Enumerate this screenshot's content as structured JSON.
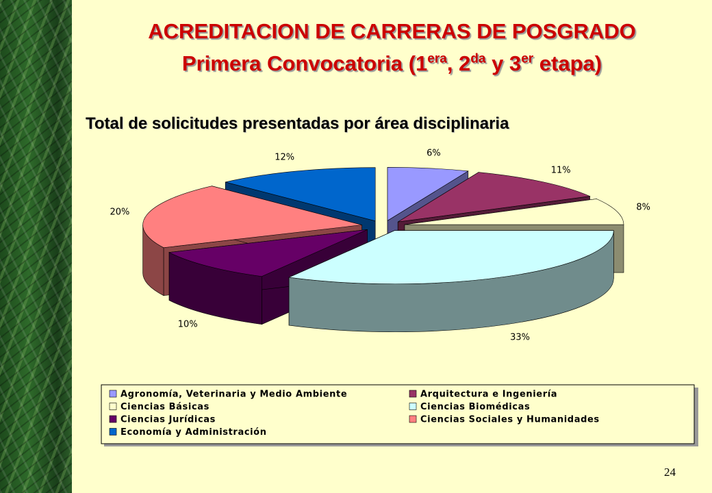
{
  "slide": {
    "title": "ACREDITACION DE CARRERAS DE POSGRADO",
    "subtitle_parts": [
      "Primera Convocatoria (1",
      "era",
      ", 2",
      "da",
      " y 3",
      "er",
      " etapa)"
    ],
    "page_number": "24"
  },
  "chart_data": {
    "type": "pie3d",
    "title": "Total de solicitudes presentadas por área disciplinaria",
    "categories": [
      "Agronomía, Veterinaria y Medio Ambiente",
      "Arquitectura e Ingeniería",
      "Ciencias Básicas",
      "Ciencias Biomédicas",
      "Ciencias Jurídicas",
      "Ciencias Sociales y Humanidades",
      "Economía y Administración"
    ],
    "values": [
      6,
      11,
      8,
      33,
      10,
      20,
      12
    ],
    "value_labels": [
      "6%",
      "11%",
      "8%",
      "33%",
      "10%",
      "20%",
      "12%"
    ],
    "colors": [
      "#9999ff",
      "#993366",
      "#ffffcc",
      "#ccffff",
      "#660066",
      "#ff8080",
      "#0066cc"
    ]
  }
}
